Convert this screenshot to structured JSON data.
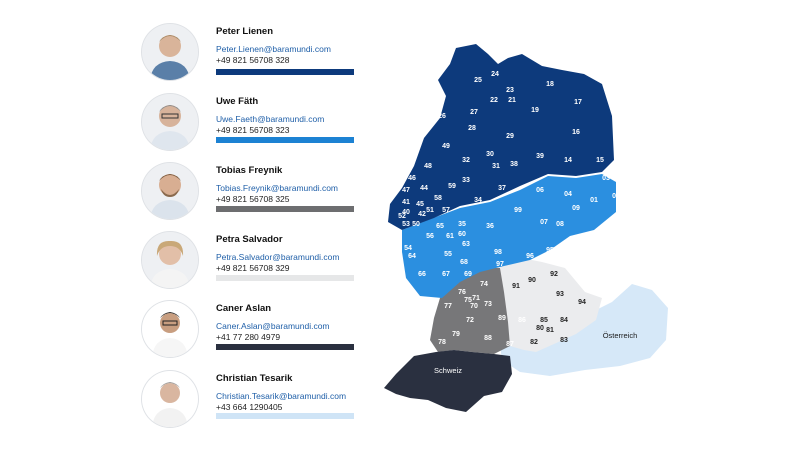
{
  "contacts": [
    {
      "name": "Peter Lienen",
      "email": "Peter.Lienen@baramundi.com",
      "phone": "+49 821 56708 328",
      "color": "#0d3a7c"
    },
    {
      "name": "Uwe Fäth",
      "email": "Uwe.Faeth@baramundi.com",
      "phone": "+49 821 56708 323",
      "color": "#1c82d3"
    },
    {
      "name": "Tobias Freynik",
      "email": "Tobias.Freynik@baramundi.com",
      "phone": "+49 821 56708 325",
      "color": "#6d6e70"
    },
    {
      "name": "Petra Salvador",
      "email": "Petra.Salvador@baramundi.com",
      "phone": "+49 821 56708 329",
      "color": "#e6e7e8"
    },
    {
      "name": "Caner Aslan",
      "email": "Caner.Aslan@baramundi.com",
      "phone": "+41 77 280 4979",
      "color": "#2a3040"
    },
    {
      "name": "Christian Tesarik",
      "email": "Christian.Tesarik@baramundi.com",
      "phone": "+43 664 1290405",
      "color": "#cfe4f6"
    }
  ],
  "map": {
    "label_switzerland": "Schweiz",
    "label_austria": "Österreich",
    "regions_dark_blue": [
      "25",
      "24",
      "23",
      "18",
      "17",
      "22",
      "21",
      "19",
      "16",
      "26",
      "27",
      "28",
      "29",
      "39",
      "14",
      "15",
      "49",
      "32",
      "30",
      "31",
      "38",
      "48",
      "33",
      "46",
      "47",
      "44",
      "58",
      "59",
      "41",
      "40",
      "45",
      "42",
      "50",
      "51",
      "57",
      "52",
      "53",
      "37"
    ],
    "regions_light_blue": [
      "34",
      "06",
      "04",
      "03",
      "09",
      "99",
      "07",
      "01",
      "02",
      "08",
      "35",
      "36",
      "56",
      "55",
      "98",
      "54",
      "63",
      "60",
      "64",
      "61",
      "65",
      "97",
      "96",
      "95",
      "66",
      "67",
      "68",
      "69"
    ],
    "regions_gray": [
      "74",
      "76",
      "75",
      "71",
      "70",
      "73",
      "77",
      "72",
      "89",
      "86",
      "79",
      "78",
      "88",
      "87"
    ],
    "regions_light_gray": [
      "91",
      "90",
      "92",
      "93",
      "94",
      "85",
      "84",
      "80",
      "81",
      "83",
      "82"
    ]
  }
}
